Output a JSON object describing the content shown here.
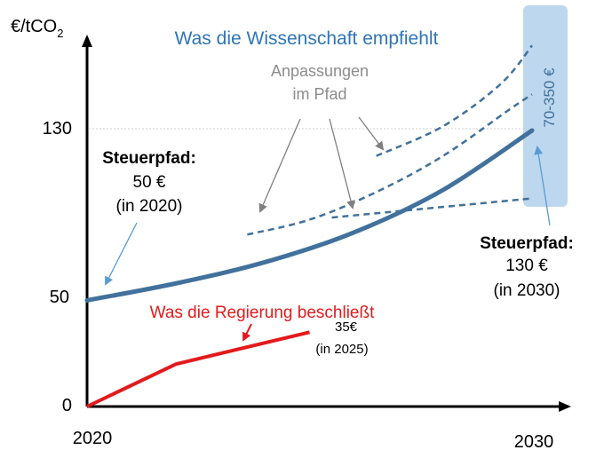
{
  "chart_data": {
    "type": "line",
    "ylabel_main": "€/tCO",
    "ylabel_sub": "2",
    "y_ticks": [
      "130",
      "50",
      "0"
    ],
    "y_tick_values": [
      130,
      50,
      0
    ],
    "x_ticks": [
      "2020",
      "2030"
    ],
    "x_tick_values": [
      2020,
      2030
    ],
    "series": [
      {
        "name": "Was die Wissenschaft empfiehlt",
        "color": "#41719c",
        "points": [
          [
            2020,
            50
          ],
          [
            2022,
            58
          ],
          [
            2024,
            68
          ],
          [
            2026,
            82
          ],
          [
            2028,
            102
          ],
          [
            2030,
            130
          ]
        ]
      },
      {
        "name": "Was die Regierung beschließt",
        "color": "#e31a1c",
        "points": [
          [
            2020,
            0
          ],
          [
            2022,
            20
          ],
          [
            2025,
            35
          ]
        ]
      }
    ],
    "adjustment_paths": [
      [
        [
          2023.6,
          81
        ],
        [
          2025.0,
          88
        ],
        [
          2026.5,
          101
        ],
        [
          2028.0,
          118
        ],
        [
          2029.5,
          140
        ],
        [
          2030.0,
          147
        ]
      ],
      [
        [
          2026.5,
          118
        ],
        [
          2028.0,
          132
        ],
        [
          2029.3,
          152
        ],
        [
          2030.0,
          170
        ]
      ],
      [
        [
          2025.5,
          89
        ],
        [
          2027.0,
          92
        ],
        [
          2028.5,
          95
        ],
        [
          2030.0,
          98
        ]
      ]
    ],
    "annotations": {
      "science_title": "Was die Wissenschaft empfiehlt",
      "adjust_line1": "Anpassungen",
      "adjust_line2": "im Pfad",
      "range_label": "70-350 €",
      "left_title": "Steuerpfad:",
      "left_value": "50 €",
      "left_year": "(in 2020)",
      "right_title": "Steuerpfad:",
      "right_value": "130 €",
      "right_year": "(in 2030)",
      "gov_title": "Was die Regierung beschließt",
      "gov_value": "35€",
      "gov_year": "(in 2025)"
    },
    "colors": {
      "science": "#41719c",
      "science_title": "#2e75b6",
      "government": "#e31a1c",
      "adjust_text": "#8c8c8c",
      "range_band": "#bdd7ee",
      "pointer": "#5b9bd5"
    }
  }
}
